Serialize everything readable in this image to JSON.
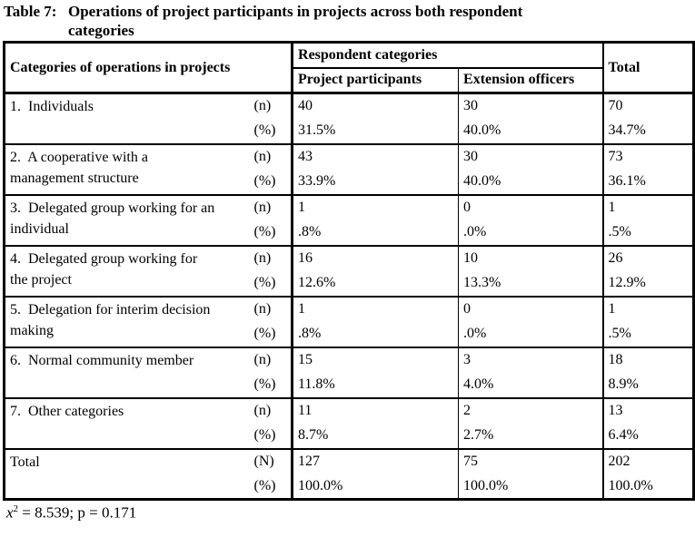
{
  "title": {
    "prefix": "Table 7: ",
    "line1": "Operations of project participants in projects across both respondent",
    "line2": "categories"
  },
  "table": {
    "header": {
      "categories": "Categories of operations in projects",
      "respondent": "Respondent categories",
      "participants": "Project participants",
      "extension": "Extension officers",
      "total": "Total"
    },
    "rows": [
      {
        "label1": "1.  Individuals",
        "label2": "",
        "n_label": "(n)",
        "pct_label": "(%)",
        "n": [
          "40",
          "30",
          "70"
        ],
        "pct": [
          "31.5%",
          "40.0%",
          "34.7%"
        ]
      },
      {
        "label1": "2.  A cooperative with a",
        "label2": "management structure",
        "n_label": "(n)",
        "pct_label": "(%)",
        "n": [
          "43",
          "30",
          "73"
        ],
        "pct": [
          "33.9%",
          "40.0%",
          "36.1%"
        ]
      },
      {
        "label1": "3.  Delegated group working for an",
        "label2": "individual",
        "n_label": "(n)",
        "pct_label": "(%)",
        "n": [
          "1",
          "0",
          "1"
        ],
        "pct": [
          ".8%",
          ".0%",
          ".5%"
        ]
      },
      {
        "label1": "4.  Delegated group working for",
        "label2": "the project",
        "n_label": "(n)",
        "pct_label": "(%)",
        "n": [
          "16",
          "10",
          "26"
        ],
        "pct": [
          "12.6%",
          "13.3%",
          "12.9%"
        ]
      },
      {
        "label1": "5.  Delegation for interim decision",
        "label2": "making",
        "n_label": "(n)",
        "pct_label": "(%)",
        "n": [
          "1",
          "0",
          "1"
        ],
        "pct": [
          ".8%",
          ".0%",
          ".5%"
        ]
      },
      {
        "label1": "6.  Normal community member",
        "label2": "",
        "n_label": "(n)",
        "pct_label": "(%)",
        "n": [
          "15",
          "3",
          "18"
        ],
        "pct": [
          "11.8%",
          "4.0%",
          "8.9%"
        ]
      },
      {
        "label1": "7.  Other categories",
        "label2": "",
        "n_label": "(n)",
        "pct_label": "(%)",
        "n": [
          "11",
          "2",
          "13"
        ],
        "pct": [
          "8.7%",
          "2.7%",
          "6.4%"
        ]
      },
      {
        "label1": "Total",
        "label2": "",
        "n_label": "(N)",
        "pct_label": "(%)",
        "n": [
          "127",
          "75",
          "202"
        ],
        "pct": [
          "100.0%",
          "100.0%",
          "100.0%"
        ]
      }
    ]
  },
  "footnote": {
    "symbol": "x",
    "exponent": "2",
    "text": " = 8.539; p = 0.171"
  },
  "colors": {
    "text": "#000000",
    "background": "#ffffff",
    "border": "#000000"
  }
}
